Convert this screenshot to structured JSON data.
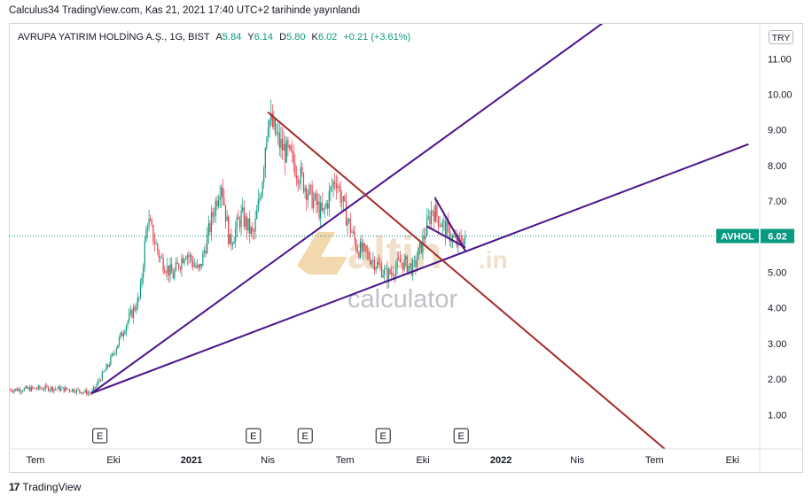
{
  "header": {
    "published": "Calculus34 TradingView.com, Kas 21, 2021 17:40 UTC+2 tarihinde yayınlandı"
  },
  "legend": {
    "symbol": "AVRUPA YATIRIM HOLDİNG A.Ş., 1G, BIST",
    "open_label": "A",
    "open": "5.84",
    "high_label": "Y",
    "high": "6.14",
    "low_label": "D",
    "low": "5.80",
    "close_label": "K",
    "close": "6.02",
    "change": "+0.21 (+3.61%)"
  },
  "currency": "TRY",
  "price_tag": {
    "ticker": "AVHOL",
    "price": "6.02"
  },
  "watermark": {
    "brand": "altin",
    "suffix": ".in",
    "sub": "calculator"
  },
  "footer": {
    "brand": "TradingView"
  },
  "colors": {
    "up": "#089981",
    "down": "#f23645",
    "trend_purple": "#4a148c",
    "trend_red": "#a52a2a",
    "accent": "#089981"
  },
  "chart_data": {
    "type": "candlestick",
    "y_ticks": [
      "1.00",
      "2.00",
      "3.00",
      "4.00",
      "5.00",
      "6.00",
      "7.00",
      "8.00",
      "9.00",
      "10.00",
      "11.00"
    ],
    "ylim": [
      0,
      11.5
    ],
    "x_ticks": [
      "Tem",
      "Eki",
      "2021",
      "Nis",
      "Tem",
      "Eki",
      "2022",
      "Nis",
      "Tem",
      "Eki"
    ],
    "x_tick_dates": [
      "2020-07",
      "2020-10",
      "2021-01",
      "2021-04",
      "2021-07",
      "2021-10",
      "2022-01",
      "2022-04",
      "2022-07",
      "2022-10"
    ],
    "last_price": 6.02,
    "events": [
      {
        "label": "E",
        "date": "2020-09"
      },
      {
        "label": "E",
        "date": "2021-03"
      },
      {
        "label": "E",
        "date": "2021-05"
      },
      {
        "label": "E",
        "date": "2021-08"
      },
      {
        "label": "E",
        "date": "2021-11"
      }
    ],
    "price_path": [
      [
        "2020-06-01",
        1.7
      ],
      [
        "2020-07-15",
        1.75
      ],
      [
        "2020-08-15",
        1.7
      ],
      [
        "2020-09-05",
        1.6
      ],
      [
        "2020-09-25",
        2.4
      ],
      [
        "2020-10-15",
        3.5
      ],
      [
        "2020-11-01",
        4.3
      ],
      [
        "2020-11-10",
        6.5
      ],
      [
        "2020-11-25",
        5.4
      ],
      [
        "2020-12-10",
        4.9
      ],
      [
        "2020-12-25",
        5.6
      ],
      [
        "2021-01-10",
        5.0
      ],
      [
        "2021-01-25",
        6.5
      ],
      [
        "2021-02-05",
        7.6
      ],
      [
        "2021-02-15",
        5.8
      ],
      [
        "2021-03-01",
        6.6
      ],
      [
        "2021-03-15",
        6.0
      ],
      [
        "2021-03-25",
        7.5
      ],
      [
        "2021-04-01",
        9.4
      ],
      [
        "2021-04-15",
        8.6
      ],
      [
        "2021-05-01",
        8.1
      ],
      [
        "2021-05-20",
        7.2
      ],
      [
        "2021-06-05",
        6.6
      ],
      [
        "2021-06-20",
        7.7
      ],
      [
        "2021-07-01",
        6.7
      ],
      [
        "2021-07-15",
        5.7
      ],
      [
        "2021-08-01",
        5.4
      ],
      [
        "2021-08-20",
        4.9
      ],
      [
        "2021-09-05",
        5.3
      ],
      [
        "2021-09-20",
        5.1
      ],
      [
        "2021-10-01",
        5.9
      ],
      [
        "2021-10-12",
        6.8
      ],
      [
        "2021-10-25",
        6.3
      ],
      [
        "2021-11-10",
        5.8
      ],
      [
        "2021-11-21",
        6.02
      ]
    ],
    "trendlines": [
      {
        "color": "purple",
        "from": [
          "2020-09-05",
          1.6
        ],
        "to": [
          "2022-05-01",
          12.0
        ]
      },
      {
        "color": "purple",
        "from": [
          "2020-09-05",
          1.6
        ],
        "to": [
          "2022-10-20",
          8.6
        ]
      },
      {
        "color": "red",
        "from": [
          "2021-04-01",
          9.5
        ],
        "to": [
          "2022-07-15",
          0.0
        ]
      },
      {
        "color": "purple",
        "from": [
          "2021-10-15",
          7.1
        ],
        "to": [
          "2021-11-20",
          5.6
        ]
      },
      {
        "color": "purple",
        "from": [
          "2021-10-05",
          6.3
        ],
        "to": [
          "2021-11-20",
          5.7
        ]
      }
    ]
  }
}
